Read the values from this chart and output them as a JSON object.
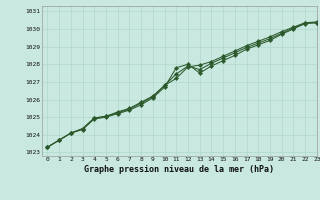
{
  "title": "Graphe pression niveau de la mer (hPa)",
  "background_color": "#c8e8e0",
  "grid_color": "#b0d8cc",
  "line_color": "#2d5a2d",
  "marker_color": "#2d5a2d",
  "xlim": [
    -0.5,
    23
  ],
  "ylim": [
    1022.8,
    1031.3
  ],
  "yticks": [
    1023,
    1024,
    1025,
    1026,
    1027,
    1028,
    1029,
    1030,
    1031
  ],
  "xticks": [
    0,
    1,
    2,
    3,
    4,
    5,
    6,
    7,
    8,
    9,
    10,
    11,
    12,
    13,
    14,
    15,
    16,
    17,
    18,
    19,
    20,
    21,
    22,
    23
  ],
  "series1": [
    1023.3,
    1023.7,
    1024.1,
    1024.3,
    1024.9,
    1025.0,
    1025.2,
    1025.4,
    1025.7,
    1026.1,
    1026.7,
    1027.8,
    1028.0,
    1027.5,
    1027.9,
    1028.2,
    1028.5,
    1028.85,
    1029.1,
    1029.35,
    1029.7,
    1030.0,
    1030.3,
    1030.35
  ],
  "series2": [
    1023.3,
    1023.7,
    1024.1,
    1024.35,
    1024.95,
    1025.05,
    1025.3,
    1025.5,
    1025.85,
    1026.2,
    1026.8,
    1027.2,
    1027.85,
    1027.95,
    1028.15,
    1028.45,
    1028.75,
    1029.05,
    1029.3,
    1029.55,
    1029.85,
    1030.1,
    1030.35,
    1030.4
  ],
  "series3": [
    1023.3,
    1023.7,
    1024.1,
    1024.35,
    1024.95,
    1025.05,
    1025.25,
    1025.45,
    1025.8,
    1026.15,
    1026.8,
    1027.45,
    1027.9,
    1027.7,
    1028.05,
    1028.35,
    1028.65,
    1028.95,
    1029.2,
    1029.45,
    1029.75,
    1030.05,
    1030.35,
    1030.35
  ]
}
